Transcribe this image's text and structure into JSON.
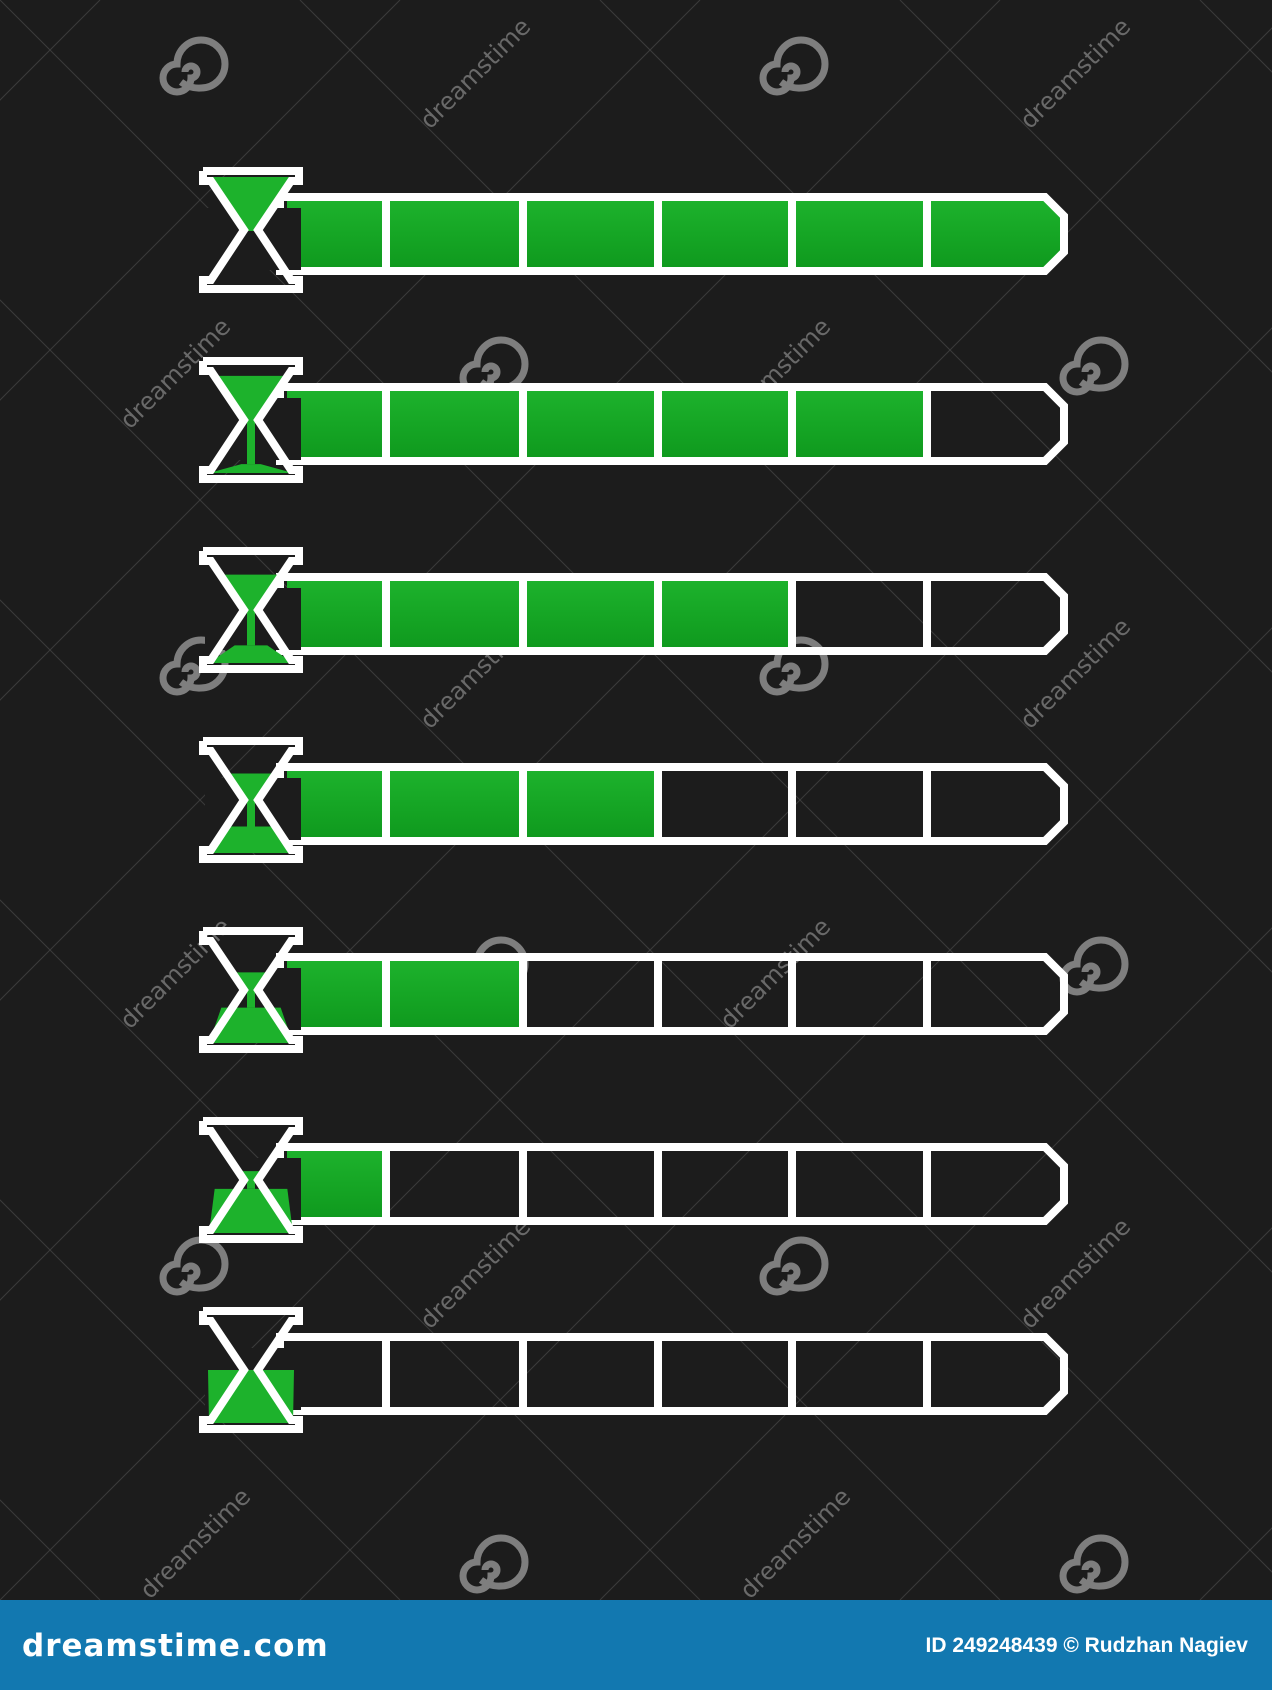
{
  "colors": {
    "background": "#1c1c1c",
    "fill": "#1db22c",
    "fill_dark": "#0f9a1e",
    "outline": "#ffffff",
    "footer": "#1278b0",
    "watermark": "#8a8a8a"
  },
  "bars": [
    {
      "level": 6,
      "max": 6
    },
    {
      "level": 5,
      "max": 6
    },
    {
      "level": 4,
      "max": 6
    },
    {
      "level": 3,
      "max": 6
    },
    {
      "level": 2,
      "max": 6
    },
    {
      "level": 1,
      "max": 6
    },
    {
      "level": 0,
      "max": 6
    }
  ],
  "watermark": {
    "text": "dreamstime",
    "icon": "spiral-icon"
  },
  "footer": {
    "logo": "dreamstime.com",
    "credit": "ID 249248439 © Rudzhan Nagiev"
  }
}
